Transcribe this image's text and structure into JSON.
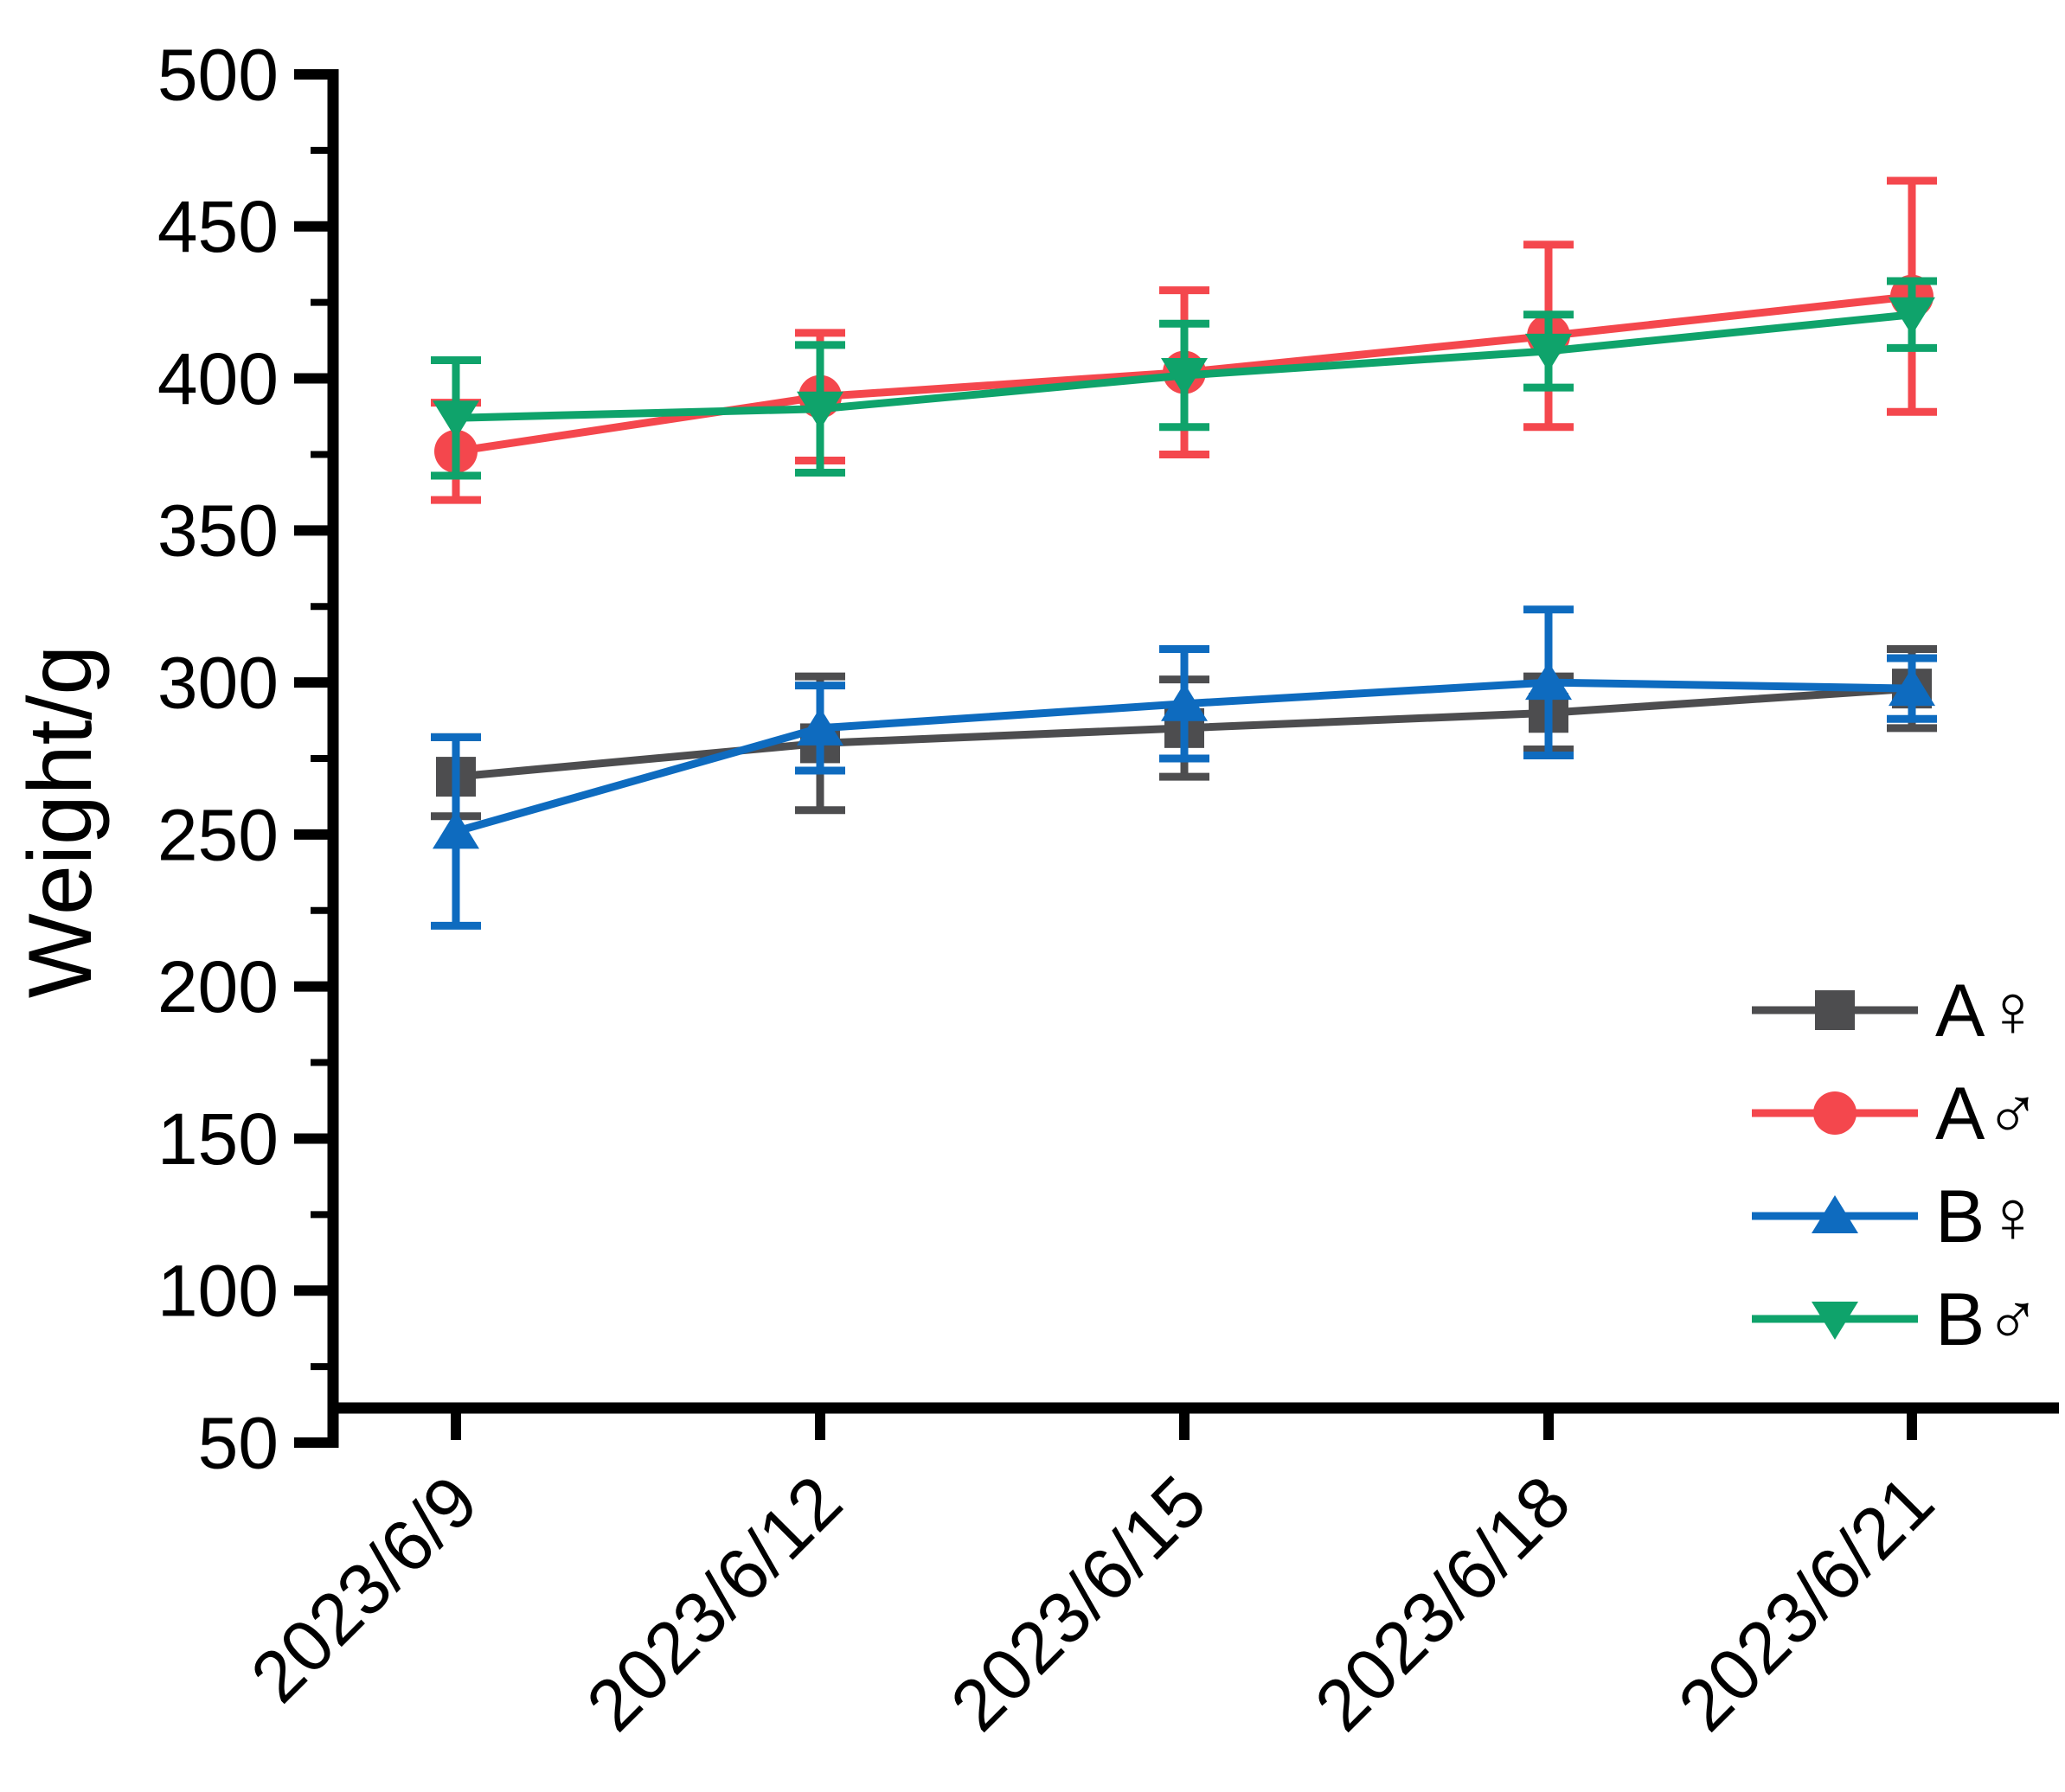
{
  "page": {
    "background": "#ffffff"
  },
  "chart_data": {
    "type": "line",
    "title": "",
    "xlabel": "",
    "ylabel": "Weight/g",
    "ylim": [
      50,
      500
    ],
    "y_major_tick_step": 50,
    "y_minor_tick_step": 25,
    "grid": false,
    "legend_position": "bottom-right",
    "categories": [
      "2023/6/9",
      "2023/6/12",
      "2023/6/15",
      "2023/6/18",
      "2023/6/21"
    ],
    "series": [
      {
        "name": "A♀",
        "semantic": "group-A-female",
        "color": "#4D4D4F",
        "marker": "square",
        "values": [
          269,
          280,
          285,
          290,
          298
        ],
        "errors": [
          13,
          22,
          16,
          12,
          13
        ]
      },
      {
        "name": "A♂",
        "semantic": "group-A-male",
        "color": "#F4474D",
        "marker": "circle",
        "values": [
          376,
          394,
          402,
          414,
          427
        ],
        "errors": [
          16,
          21,
          27,
          30,
          38
        ]
      },
      {
        "name": "B♀",
        "semantic": "group-B-female",
        "color": "#0E6BBF",
        "marker": "triangle-up",
        "values": [
          251,
          285,
          293,
          300,
          298
        ],
        "errors": [
          31,
          14,
          18,
          24,
          10
        ]
      },
      {
        "name": "B♂",
        "semantic": "group-B-male",
        "color": "#0FA36B",
        "marker": "triangle-down",
        "values": [
          387,
          390,
          401,
          409,
          421
        ],
        "errors": [
          19,
          21,
          17,
          12,
          11
        ]
      }
    ],
    "axis_color": "#000000",
    "tick_label_color": "#000000"
  }
}
